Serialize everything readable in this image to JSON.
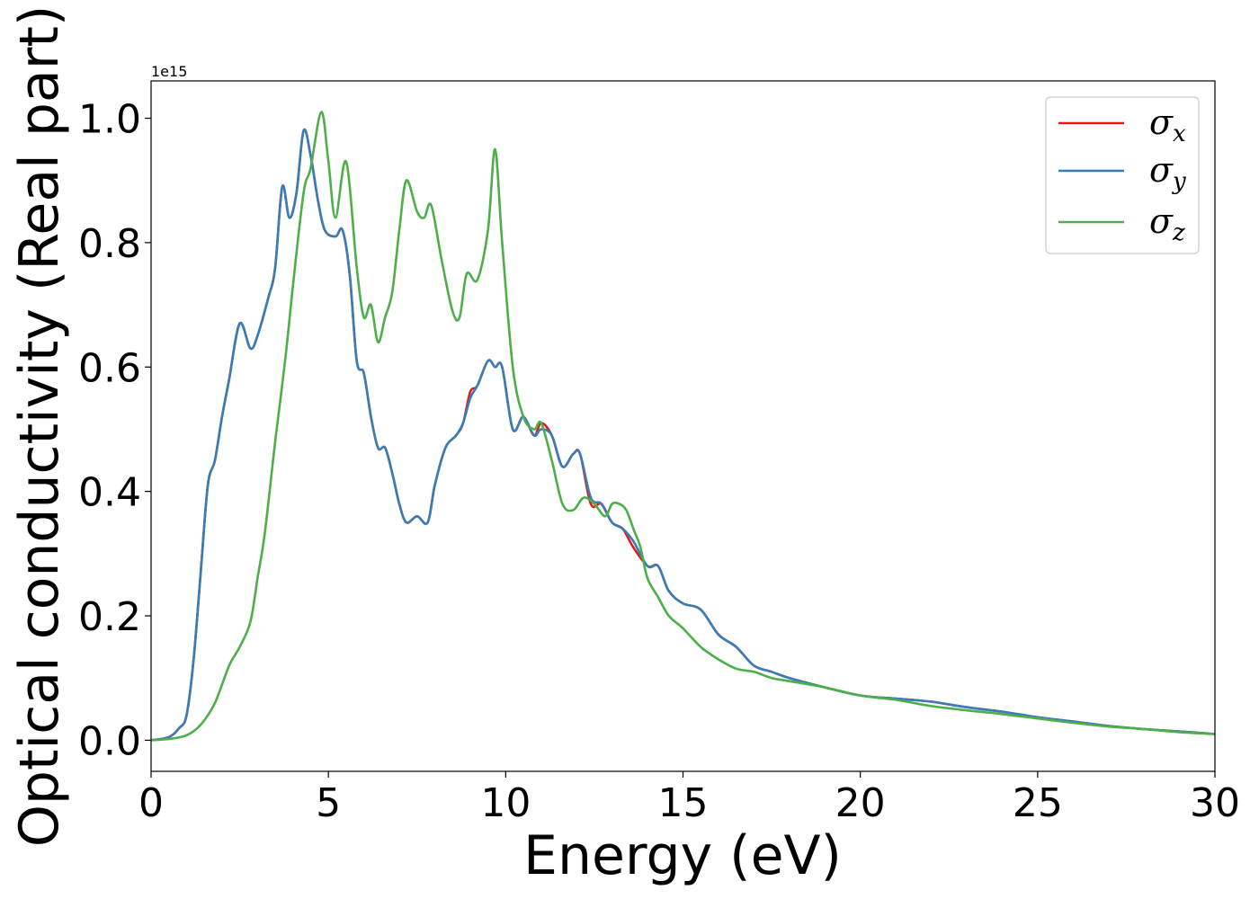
{
  "chart_data": {
    "type": "line",
    "title": "",
    "xlabel": "Energy (eV)",
    "ylabel": "Optical conductivity (Real part)",
    "y_offset_text": "1e15",
    "xlim": [
      0,
      30
    ],
    "ylim": [
      -0.05,
      1.06
    ],
    "xticks": [
      0,
      5,
      10,
      15,
      20,
      25,
      30
    ],
    "xtick_labels": [
      "0",
      "5",
      "10",
      "15",
      "20",
      "25",
      "30"
    ],
    "yticks": [
      0.0,
      0.2,
      0.4,
      0.6,
      0.8,
      1.0
    ],
    "ytick_labels": [
      "0.0",
      "0.2",
      "0.4",
      "0.6",
      "0.8",
      "1.0"
    ],
    "grid": false,
    "legend_position": "top-right",
    "series": [
      {
        "name": "σx",
        "label_base": "σ",
        "label_sub": "x",
        "color": "#e41a1c",
        "x": [
          0,
          0.5,
          0.8,
          1.0,
          1.2,
          1.4,
          1.6,
          1.8,
          2.0,
          2.2,
          2.5,
          2.8,
          3.0,
          3.3,
          3.5,
          3.7,
          3.9,
          4.1,
          4.3,
          4.5,
          4.7,
          4.9,
          5.2,
          5.4,
          5.6,
          5.8,
          6.0,
          6.2,
          6.4,
          6.6,
          6.8,
          7.0,
          7.2,
          7.5,
          7.8,
          8.0,
          8.3,
          8.6,
          8.8,
          9.0,
          9.2,
          9.5,
          9.7,
          9.9,
          10.2,
          10.5,
          10.8,
          11.0,
          11.3,
          11.6,
          11.9,
          12.1,
          12.4,
          12.7,
          13.0,
          13.3,
          13.6,
          14.0,
          14.3,
          14.6,
          15.0,
          15.5,
          16.0,
          16.5,
          17.0,
          17.5,
          18.0,
          19.0,
          20.0,
          21.0,
          22.0,
          23.0,
          24.0,
          25.0,
          26.0,
          27.0,
          28.0,
          29.0,
          30.0
        ],
        "y": [
          0,
          0.005,
          0.02,
          0.04,
          0.13,
          0.27,
          0.41,
          0.45,
          0.52,
          0.58,
          0.67,
          0.63,
          0.65,
          0.71,
          0.76,
          0.89,
          0.84,
          0.88,
          0.98,
          0.94,
          0.87,
          0.82,
          0.81,
          0.82,
          0.75,
          0.61,
          0.59,
          0.52,
          0.47,
          0.47,
          0.43,
          0.38,
          0.35,
          0.36,
          0.35,
          0.41,
          0.47,
          0.49,
          0.51,
          0.56,
          0.57,
          0.61,
          0.6,
          0.6,
          0.5,
          0.52,
          0.49,
          0.51,
          0.49,
          0.44,
          0.46,
          0.46,
          0.38,
          0.38,
          0.35,
          0.34,
          0.31,
          0.28,
          0.28,
          0.24,
          0.22,
          0.21,
          0.17,
          0.15,
          0.12,
          0.11,
          0.1,
          0.085,
          0.072,
          0.067,
          0.062,
          0.053,
          0.046,
          0.037,
          0.03,
          0.023,
          0.018,
          0.014,
          0.01
        ]
      },
      {
        "name": "σy",
        "label_base": "σ",
        "label_sub": "y",
        "color": "#377eb8",
        "x": [
          0,
          0.5,
          0.8,
          1.0,
          1.2,
          1.4,
          1.6,
          1.8,
          2.0,
          2.2,
          2.5,
          2.8,
          3.0,
          3.3,
          3.5,
          3.7,
          3.9,
          4.1,
          4.3,
          4.5,
          4.7,
          4.9,
          5.2,
          5.4,
          5.6,
          5.8,
          6.0,
          6.2,
          6.4,
          6.6,
          6.8,
          7.0,
          7.2,
          7.5,
          7.8,
          8.0,
          8.3,
          8.6,
          8.8,
          9.0,
          9.2,
          9.5,
          9.7,
          9.9,
          10.2,
          10.5,
          10.8,
          11.0,
          11.3,
          11.6,
          11.9,
          12.1,
          12.4,
          12.7,
          13.0,
          13.3,
          13.6,
          14.0,
          14.3,
          14.6,
          15.0,
          15.5,
          16.0,
          16.5,
          17.0,
          17.5,
          18.0,
          19.0,
          20.0,
          21.0,
          22.0,
          23.0,
          24.0,
          25.0,
          26.0,
          27.0,
          28.0,
          29.0,
          30.0
        ],
        "y": [
          0,
          0.005,
          0.02,
          0.04,
          0.13,
          0.27,
          0.41,
          0.45,
          0.52,
          0.58,
          0.67,
          0.63,
          0.65,
          0.71,
          0.76,
          0.89,
          0.84,
          0.88,
          0.98,
          0.94,
          0.87,
          0.82,
          0.81,
          0.82,
          0.75,
          0.61,
          0.59,
          0.52,
          0.47,
          0.47,
          0.43,
          0.38,
          0.35,
          0.36,
          0.35,
          0.41,
          0.47,
          0.49,
          0.51,
          0.55,
          0.57,
          0.61,
          0.6,
          0.6,
          0.5,
          0.52,
          0.49,
          0.5,
          0.49,
          0.44,
          0.46,
          0.46,
          0.39,
          0.38,
          0.35,
          0.34,
          0.32,
          0.28,
          0.28,
          0.24,
          0.22,
          0.21,
          0.17,
          0.15,
          0.12,
          0.11,
          0.1,
          0.085,
          0.072,
          0.067,
          0.062,
          0.053,
          0.046,
          0.037,
          0.03,
          0.023,
          0.018,
          0.014,
          0.01
        ]
      },
      {
        "name": "σz",
        "label_base": "σ",
        "label_sub": "z",
        "color": "#4daf4a",
        "x": [
          0,
          0.5,
          1.0,
          1.4,
          1.8,
          2.2,
          2.5,
          2.8,
          3.0,
          3.2,
          3.5,
          3.8,
          4.0,
          4.3,
          4.5,
          4.8,
          5.0,
          5.2,
          5.5,
          5.8,
          6.0,
          6.2,
          6.4,
          6.6,
          6.8,
          7.0,
          7.2,
          7.5,
          7.7,
          7.9,
          8.2,
          8.5,
          8.7,
          8.9,
          9.2,
          9.5,
          9.7,
          9.9,
          10.2,
          10.5,
          10.8,
          11.0,
          11.3,
          11.6,
          11.9,
          12.2,
          12.5,
          12.8,
          13.0,
          13.2,
          13.4,
          13.6,
          13.8,
          14.0,
          14.3,
          14.6,
          15.0,
          15.5,
          16.0,
          16.5,
          17.0,
          17.5,
          18.0,
          19.0,
          20.0,
          21.0,
          22.0,
          23.0,
          24.0,
          25.0,
          26.0,
          27.0,
          28.0,
          29.0,
          30.0
        ],
        "y": [
          0,
          0.002,
          0.008,
          0.025,
          0.06,
          0.12,
          0.15,
          0.19,
          0.26,
          0.33,
          0.48,
          0.62,
          0.73,
          0.88,
          0.92,
          1.01,
          0.93,
          0.84,
          0.93,
          0.76,
          0.68,
          0.7,
          0.64,
          0.68,
          0.72,
          0.82,
          0.9,
          0.85,
          0.84,
          0.86,
          0.77,
          0.69,
          0.68,
          0.75,
          0.74,
          0.82,
          0.95,
          0.8,
          0.6,
          0.52,
          0.5,
          0.51,
          0.45,
          0.38,
          0.37,
          0.39,
          0.38,
          0.36,
          0.38,
          0.38,
          0.37,
          0.34,
          0.31,
          0.26,
          0.23,
          0.2,
          0.18,
          0.15,
          0.13,
          0.115,
          0.11,
          0.1,
          0.095,
          0.085,
          0.072,
          0.065,
          0.055,
          0.048,
          0.042,
          0.035,
          0.028,
          0.022,
          0.018,
          0.013,
          0.01
        ]
      }
    ]
  }
}
